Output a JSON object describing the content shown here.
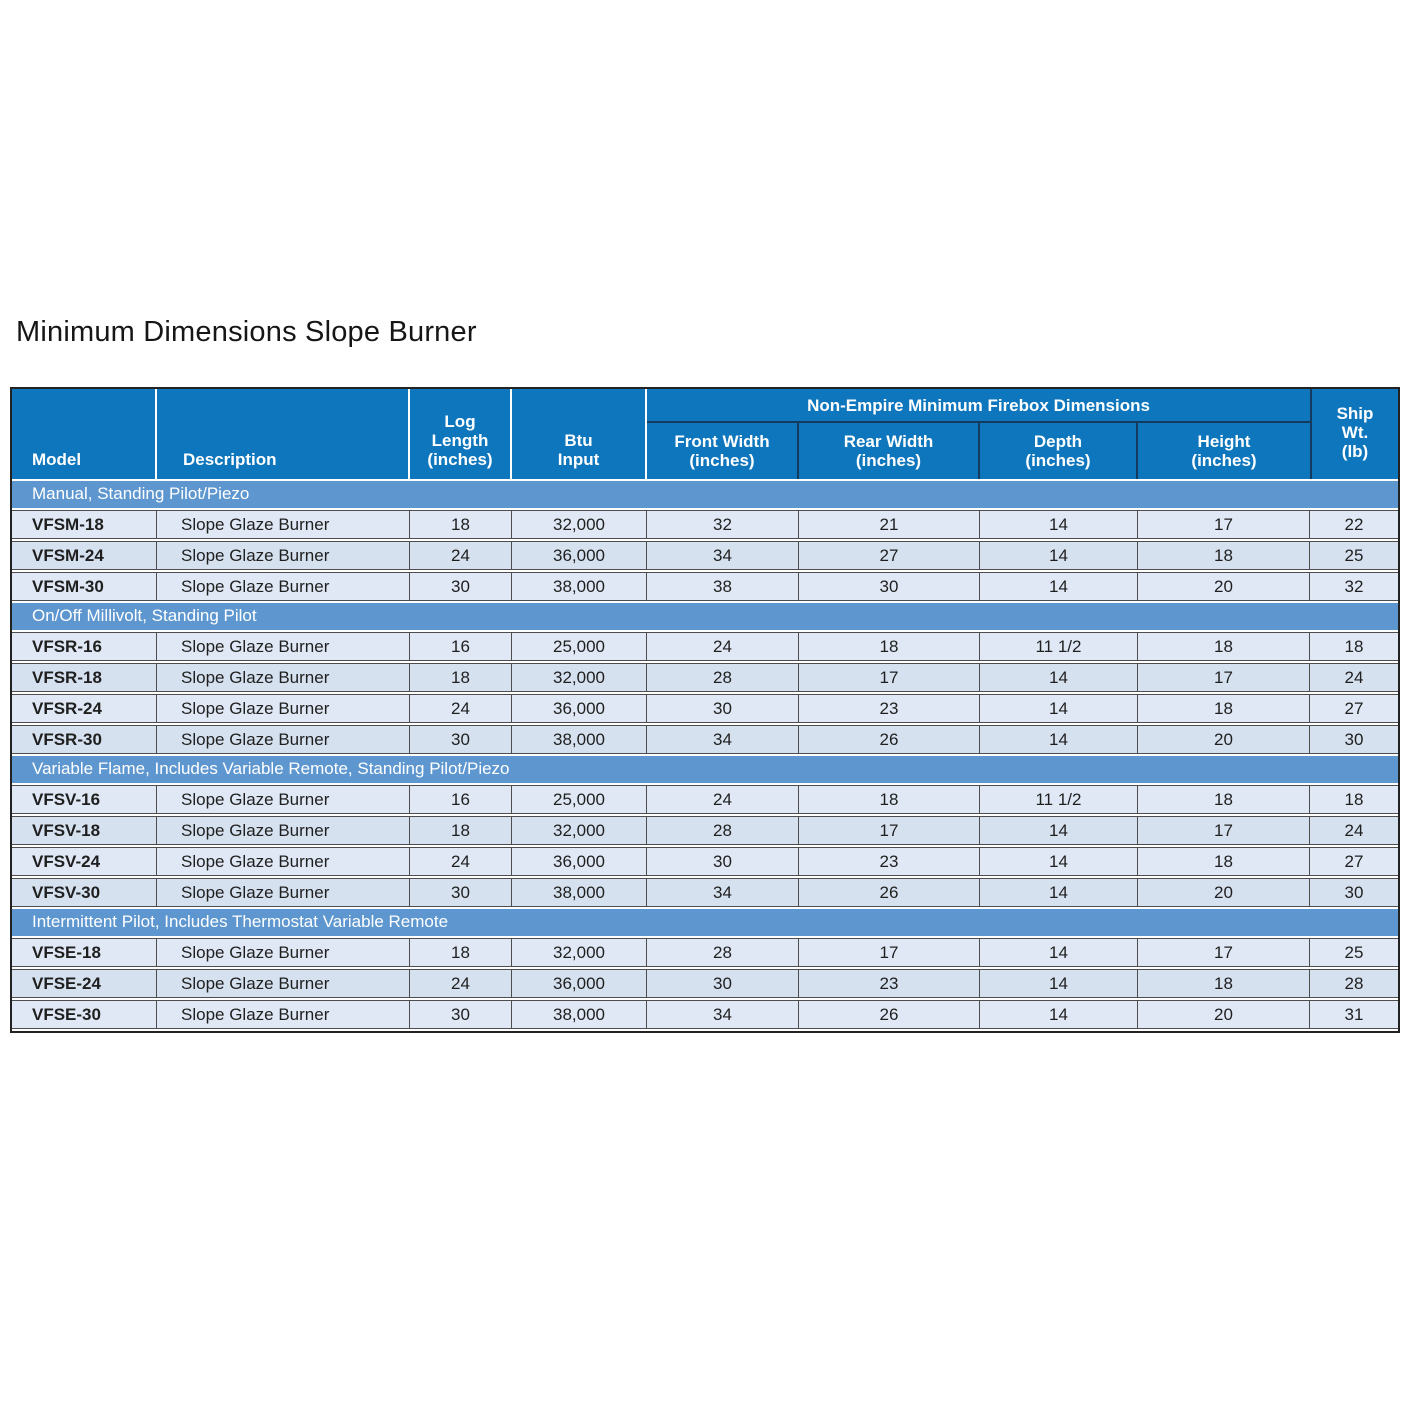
{
  "page": {
    "title": "Minimum Dimensions Slope Burner"
  },
  "table": {
    "columns": {
      "model": "Model",
      "description": "Description",
      "log_length": "Log\nLength\n(inches)",
      "btu_input": "Btu\nInput",
      "firebox_group": "Non-Empire Minimum Firebox Dimensions",
      "front_width": "Front Width\n(inches)",
      "rear_width": "Rear Width\n(inches)",
      "depth": "Depth\n(inches)",
      "height": "Height\n(inches)",
      "ship_wt": "Ship\nWt.\n(lb)"
    },
    "sections": [
      {
        "label": "Manual, Standing Pilot/Piezo",
        "rows": [
          [
            "VFSM-18",
            "Slope Glaze Burner",
            "18",
            "32,000",
            "32",
            "21",
            "14",
            "17",
            "22"
          ],
          [
            "VFSM-24",
            "Slope Glaze Burner",
            "24",
            "36,000",
            "34",
            "27",
            "14",
            "18",
            "25"
          ],
          [
            "VFSM-30",
            "Slope Glaze Burner",
            "30",
            "38,000",
            "38",
            "30",
            "14",
            "20",
            "32"
          ]
        ]
      },
      {
        "label": "On/Off Millivolt, Standing Pilot",
        "rows": [
          [
            "VFSR-16",
            "Slope Glaze Burner",
            "16",
            "25,000",
            "24",
            "18",
            "11 1/2",
            "18",
            "18"
          ],
          [
            "VFSR-18",
            "Slope Glaze Burner",
            "18",
            "32,000",
            "28",
            "17",
            "14",
            "17",
            "24"
          ],
          [
            "VFSR-24",
            "Slope Glaze Burner",
            "24",
            "36,000",
            "30",
            "23",
            "14",
            "18",
            "27"
          ],
          [
            "VFSR-30",
            "Slope Glaze Burner",
            "30",
            "38,000",
            "34",
            "26",
            "14",
            "20",
            "30"
          ]
        ]
      },
      {
        "label": "Variable Flame, Includes Variable Remote, Standing Pilot/Piezo",
        "rows": [
          [
            "VFSV-16",
            "Slope Glaze Burner",
            "16",
            "25,000",
            "24",
            "18",
            "11 1/2",
            "18",
            "18"
          ],
          [
            "VFSV-18",
            "Slope Glaze Burner",
            "18",
            "32,000",
            "28",
            "17",
            "14",
            "17",
            "24"
          ],
          [
            "VFSV-24",
            "Slope Glaze Burner",
            "24",
            "36,000",
            "30",
            "23",
            "14",
            "18",
            "27"
          ],
          [
            "VFSV-30",
            "Slope Glaze Burner",
            "30",
            "38,000",
            "34",
            "26",
            "14",
            "20",
            "30"
          ]
        ]
      },
      {
        "label": "Intermittent Pilot, Includes Thermostat Variable Remote",
        "rows": [
          [
            "VFSE-18",
            "Slope Glaze Burner",
            "18",
            "32,000",
            "28",
            "17",
            "14",
            "17",
            "25"
          ],
          [
            "VFSE-24",
            "Slope Glaze Burner",
            "24",
            "36,000",
            "30",
            "23",
            "14",
            "18",
            "28"
          ],
          [
            "VFSE-30",
            "Slope Glaze Burner",
            "30",
            "38,000",
            "34",
            "26",
            "14",
            "20",
            "31"
          ]
        ]
      }
    ],
    "colors": {
      "header_blue": "#0e76bc",
      "header_divider_navy": "#143a5e",
      "section_band_blue": "#5e97cf",
      "row_light": "#dfe8f4",
      "row_alt": "#d6e1ef",
      "cell_border": "#4d4d4d"
    }
  }
}
